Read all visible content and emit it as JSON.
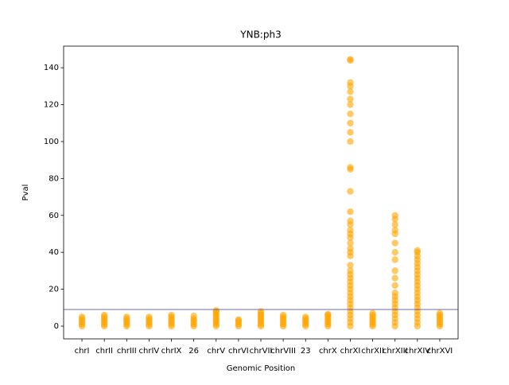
{
  "chart_data": {
    "type": "strip",
    "title": "YNB:ph3",
    "x_label": "Genomic Position",
    "y_label": "Pval",
    "categories": [
      "chrI",
      "chrII",
      "chrIII",
      "chrIV",
      "chrIX",
      "26",
      "chrV",
      "chrVI",
      "chrVII",
      "chrVIII",
      "23",
      "chrX",
      "chrXI",
      "chrXII",
      "chrXIII",
      "chrXIV",
      "chrXVI"
    ],
    "values": [
      [
        0,
        1,
        2,
        3,
        4,
        5
      ],
      [
        0,
        1,
        2,
        3,
        4,
        5,
        6
      ],
      [
        0,
        1,
        2,
        3,
        4,
        5
      ],
      [
        0,
        1,
        2,
        3,
        4,
        5
      ],
      [
        0,
        1,
        2,
        3,
        4,
        5,
        6
      ],
      [
        0,
        1,
        2,
        3,
        4,
        5.5
      ],
      [
        0,
        1,
        2,
        3,
        4,
        5,
        6,
        7,
        8,
        8.5
      ],
      [
        0,
        1,
        2,
        3,
        3.5
      ],
      [
        0,
        1,
        2,
        3,
        4,
        5,
        6,
        7,
        8
      ],
      [
        0,
        1,
        2,
        3,
        4,
        5,
        6
      ],
      [
        0,
        1,
        2,
        3,
        4,
        5
      ],
      [
        0,
        1,
        2,
        3,
        4,
        5,
        6,
        6.5
      ],
      [
        0,
        2,
        4,
        6,
        8,
        10,
        12,
        14,
        16,
        18,
        20,
        22,
        24,
        26,
        28,
        30,
        33,
        38,
        40,
        42,
        45,
        48,
        50,
        52,
        55,
        57,
        62,
        73,
        85,
        86,
        100,
        105,
        110,
        115,
        120,
        123,
        127,
        130,
        132,
        144,
        144.5
      ],
      [
        0,
        1,
        2,
        3,
        4,
        5,
        6,
        7
      ],
      [
        0,
        2,
        4,
        6,
        8,
        10,
        12,
        14,
        16,
        18,
        22,
        26,
        30,
        36,
        40,
        45,
        50,
        52,
        55,
        58,
        60
      ],
      [
        0,
        2,
        4,
        6,
        8,
        10,
        12,
        14,
        16,
        18,
        20,
        22,
        24,
        26,
        28,
        30,
        32,
        34,
        36,
        38,
        40,
        41
      ],
      [
        0,
        1,
        2,
        3,
        4,
        5,
        6,
        7
      ]
    ],
    "color": "#ffa500",
    "threshold": 9,
    "threshold_color": "#5a5aa0",
    "ylim": [
      -6.9,
      151.7
    ],
    "yticks": [
      0,
      20,
      40,
      60,
      80,
      100,
      120,
      140
    ]
  }
}
